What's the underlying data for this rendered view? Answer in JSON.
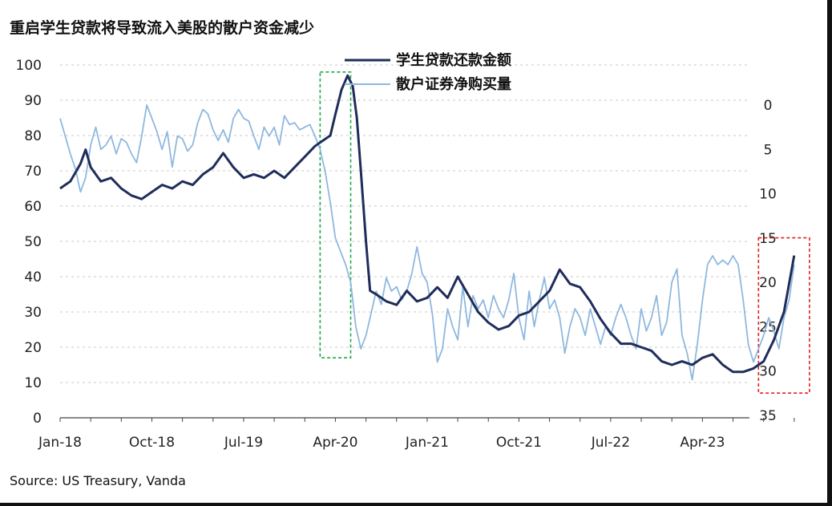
{
  "page": {
    "title": "重启学生贷款将导致流入美股的散户资金减少",
    "source": "Source: US Treasury, Vanda"
  },
  "chart_data": {
    "type": "line",
    "title": "重启学生贷款将导致流入美股的散户资金减少",
    "x_tick_labels": [
      "Jan-18",
      "Oct-18",
      "Jul-19",
      "Apr-20",
      "Jan-21",
      "Oct-21",
      "Jul-22",
      "Apr-23"
    ],
    "x_tick_months": [
      0,
      9,
      18,
      27,
      36,
      45,
      54,
      63
    ],
    "left_axis": {
      "ylim": [
        0,
        100
      ],
      "ticks": [
        0,
        10,
        20,
        30,
        40,
        50,
        60,
        70,
        80,
        90,
        100
      ]
    },
    "right_axis": {
      "ylim": [
        -4.3,
        35
      ],
      "ticks": [
        0,
        5,
        10,
        15,
        20,
        25,
        30,
        35
      ],
      "inverted": true
    },
    "grid": "horizontal dashed",
    "legend_position": "top-center",
    "highlight_boxes": [
      {
        "color": "#1fa84a",
        "x_months": [
          25.5,
          28.5
        ],
        "left_y": [
          17,
          98
        ]
      },
      {
        "color": "#e02020",
        "x_months": [
          68.5,
          73.5
        ],
        "left_y": [
          7,
          51
        ]
      }
    ],
    "series": [
      {
        "name": "学生贷款还款金额",
        "axis": "left",
        "color": "#1f2d5a",
        "points": [
          [
            0,
            65
          ],
          [
            1,
            67
          ],
          [
            2,
            72
          ],
          [
            2.5,
            76
          ],
          [
            3,
            71
          ],
          [
            4,
            67
          ],
          [
            5,
            68
          ],
          [
            6,
            65
          ],
          [
            7,
            63
          ],
          [
            8,
            62
          ],
          [
            9,
            64
          ],
          [
            10,
            66
          ],
          [
            11,
            65
          ],
          [
            12,
            67
          ],
          [
            13,
            66
          ],
          [
            14,
            69
          ],
          [
            15,
            71
          ],
          [
            16,
            75
          ],
          [
            17,
            71
          ],
          [
            18,
            68
          ],
          [
            19,
            69
          ],
          [
            20,
            68
          ],
          [
            21,
            70
          ],
          [
            22,
            68
          ],
          [
            23,
            71
          ],
          [
            24,
            74
          ],
          [
            25,
            77
          ],
          [
            26,
            79
          ],
          [
            26.5,
            80
          ],
          [
            27,
            86
          ],
          [
            27.6,
            93
          ],
          [
            28.2,
            97
          ],
          [
            28.7,
            94
          ],
          [
            29.1,
            85
          ],
          [
            29.5,
            70
          ],
          [
            30,
            50
          ],
          [
            30.4,
            36
          ],
          [
            31,
            35
          ],
          [
            32,
            33
          ],
          [
            33,
            32
          ],
          [
            34,
            36
          ],
          [
            35,
            33
          ],
          [
            36,
            34
          ],
          [
            37,
            37
          ],
          [
            38,
            34
          ],
          [
            39,
            40
          ],
          [
            40,
            35
          ],
          [
            41,
            30
          ],
          [
            42,
            27
          ],
          [
            43,
            25
          ],
          [
            44,
            26
          ],
          [
            45,
            29
          ],
          [
            46,
            30
          ],
          [
            47,
            33
          ],
          [
            48,
            36
          ],
          [
            49,
            42
          ],
          [
            50,
            38
          ],
          [
            51,
            37
          ],
          [
            52,
            33
          ],
          [
            53,
            28
          ],
          [
            54,
            24
          ],
          [
            55,
            21
          ],
          [
            56,
            21
          ],
          [
            57,
            20
          ],
          [
            58,
            19
          ],
          [
            59,
            16
          ],
          [
            60,
            15
          ],
          [
            61,
            16
          ],
          [
            62,
            15
          ],
          [
            63,
            17
          ],
          [
            64,
            18
          ],
          [
            65,
            15
          ],
          [
            66,
            13
          ],
          [
            67,
            13
          ],
          [
            68,
            14
          ],
          [
            69,
            16
          ],
          [
            70,
            22
          ],
          [
            71,
            30
          ],
          [
            71.5,
            38
          ],
          [
            72,
            46
          ]
        ]
      },
      {
        "name": "散户证券净购买量",
        "axis": "right",
        "color": "#8fb8df",
        "points": [
          [
            0,
            1.5
          ],
          [
            0.5,
            3.5
          ],
          [
            1,
            5.5
          ],
          [
            1.5,
            7.2
          ],
          [
            2,
            9.8
          ],
          [
            2.5,
            8.2
          ],
          [
            3,
            4.5
          ],
          [
            3.5,
            2.5
          ],
          [
            4,
            5
          ],
          [
            4.5,
            4.5
          ],
          [
            5,
            3.5
          ],
          [
            5.5,
            5.5
          ],
          [
            6,
            3.8
          ],
          [
            6.5,
            4.2
          ],
          [
            7,
            5.5
          ],
          [
            7.5,
            6.5
          ],
          [
            8,
            3.5
          ],
          [
            8.5,
            0
          ],
          [
            9,
            1.5
          ],
          [
            9.5,
            3
          ],
          [
            10,
            5
          ],
          [
            10.5,
            3
          ],
          [
            11,
            7
          ],
          [
            11.5,
            3.5
          ],
          [
            12,
            3.8
          ],
          [
            12.5,
            5.2
          ],
          [
            13,
            4.5
          ],
          [
            13.5,
            2
          ],
          [
            14,
            0.5
          ],
          [
            14.5,
            1
          ],
          [
            15,
            2.8
          ],
          [
            15.5,
            4
          ],
          [
            16,
            2.8
          ],
          [
            16.5,
            4.2
          ],
          [
            17,
            1.5
          ],
          [
            17.5,
            0.5
          ],
          [
            18,
            1.5
          ],
          [
            18.5,
            1.8
          ],
          [
            19,
            3.5
          ],
          [
            19.5,
            5
          ],
          [
            20,
            2.5
          ],
          [
            20.5,
            3.5
          ],
          [
            21,
            2.5
          ],
          [
            21.5,
            4.5
          ],
          [
            22,
            1.2
          ],
          [
            22.5,
            2.2
          ],
          [
            23,
            2
          ],
          [
            23.5,
            2.8
          ],
          [
            24,
            2.5
          ],
          [
            24.5,
            2.2
          ],
          [
            25,
            3.5
          ],
          [
            25.5,
            5
          ],
          [
            26,
            7.5
          ],
          [
            26.5,
            11
          ],
          [
            27,
            15
          ],
          [
            27.5,
            16.5
          ],
          [
            28,
            18
          ],
          [
            28.5,
            20
          ],
          [
            29,
            25
          ],
          [
            29.5,
            27.5
          ],
          [
            30,
            26
          ],
          [
            30.5,
            23.5
          ],
          [
            31,
            21
          ],
          [
            31.5,
            22.5
          ],
          [
            32,
            19.5
          ],
          [
            32.5,
            21
          ],
          [
            33,
            20.5
          ],
          [
            33.5,
            22
          ],
          [
            34,
            21
          ],
          [
            34.5,
            19
          ],
          [
            35,
            16
          ],
          [
            35.5,
            19
          ],
          [
            36,
            20
          ],
          [
            36.5,
            23.5
          ],
          [
            37,
            29
          ],
          [
            37.5,
            27.5
          ],
          [
            38,
            23
          ],
          [
            38.5,
            25
          ],
          [
            39,
            26.5
          ],
          [
            39.5,
            20.5
          ],
          [
            40,
            25
          ],
          [
            40.5,
            21.5
          ],
          [
            41,
            23
          ],
          [
            41.5,
            22
          ],
          [
            42,
            24
          ],
          [
            42.5,
            21.5
          ],
          [
            43,
            23
          ],
          [
            43.5,
            24
          ],
          [
            44,
            22
          ],
          [
            44.5,
            19
          ],
          [
            45,
            24
          ],
          [
            45.5,
            26.5
          ],
          [
            46,
            21
          ],
          [
            46.5,
            25
          ],
          [
            47,
            22
          ],
          [
            47.5,
            19.5
          ],
          [
            48,
            23
          ],
          [
            48.5,
            22
          ],
          [
            49,
            24
          ],
          [
            49.5,
            28
          ],
          [
            50,
            25
          ],
          [
            50.5,
            23
          ],
          [
            51,
            24
          ],
          [
            51.5,
            26
          ],
          [
            52,
            23
          ],
          [
            52.5,
            25
          ],
          [
            53,
            27
          ],
          [
            53.5,
            25
          ],
          [
            54,
            26
          ],
          [
            54.5,
            24
          ],
          [
            55,
            22.5
          ],
          [
            55.5,
            24
          ],
          [
            56,
            26
          ],
          [
            56.5,
            27.5
          ],
          [
            57,
            23
          ],
          [
            57.5,
            25.5
          ],
          [
            58,
            24
          ],
          [
            58.5,
            21.5
          ],
          [
            59,
            26
          ],
          [
            59.5,
            24.5
          ],
          [
            60,
            20
          ],
          [
            60.5,
            18.5
          ],
          [
            61,
            26
          ],
          [
            61.5,
            28
          ],
          [
            62,
            31
          ],
          [
            62.5,
            27
          ],
          [
            63,
            22
          ],
          [
            63.5,
            18
          ],
          [
            64,
            17
          ],
          [
            64.5,
            18
          ],
          [
            65,
            17.5
          ],
          [
            65.5,
            18
          ],
          [
            66,
            17
          ],
          [
            66.5,
            18
          ],
          [
            67,
            22
          ],
          [
            67.5,
            27
          ],
          [
            68,
            29
          ],
          [
            68.5,
            27.5
          ],
          [
            69,
            26
          ],
          [
            69.5,
            24
          ],
          [
            70,
            25.5
          ],
          [
            70.5,
            27.5
          ],
          [
            71,
            24
          ],
          [
            71.5,
            22
          ],
          [
            72,
            18
          ]
        ]
      }
    ]
  }
}
